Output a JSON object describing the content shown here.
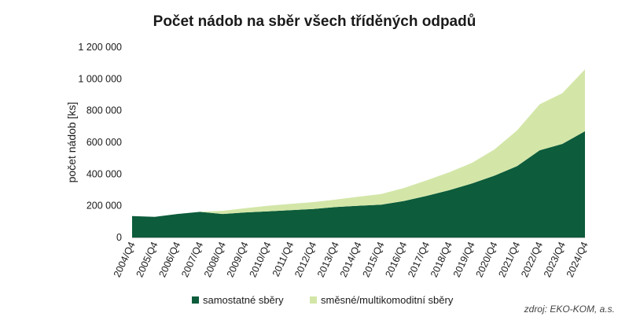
{
  "chart_data": {
    "type": "area",
    "title": "Počet nádob na sběr všech tříděných odpadů",
    "ylabel": "počet nádob [ks]",
    "xlabel": "",
    "ylim": [
      0,
      1200000
    ],
    "yticks": [
      0,
      200000,
      400000,
      600000,
      800000,
      1000000,
      1200000
    ],
    "ytick_labels": [
      "0",
      "200 000",
      "400 000",
      "600 000",
      "800 000",
      "1 000 000",
      "1 200 000"
    ],
    "stacked": true,
    "grid": false,
    "legend_position": "bottom",
    "categories": [
      "2004/Q4",
      "2005/Q4",
      "2006/Q4",
      "2007/Q4",
      "2008/Q4",
      "2009/Q4",
      "2010/Q4",
      "2011/Q4",
      "2012/Q4",
      "2013/Q4",
      "2014/Q4",
      "2015/Q4",
      "2016/Q4",
      "2017/Q4",
      "2018/Q4",
      "2019/Q4",
      "2020/Q4",
      "2021/Q4",
      "2022/Q4",
      "2023/Q4",
      "2024/Q4"
    ],
    "series": [
      {
        "name": "samostatné sběry",
        "color": "#0d5c3c",
        "values": [
          135000,
          130000,
          148000,
          162000,
          148000,
          158000,
          165000,
          172000,
          180000,
          192000,
          200000,
          207000,
          230000,
          262000,
          298000,
          340000,
          390000,
          450000,
          550000,
          590000,
          670000
        ]
      },
      {
        "name": "směsné/multikomoditní sběry",
        "color": "#d3e6a8",
        "values": [
          0,
          0,
          0,
          0,
          20000,
          27000,
          35000,
          40000,
          43000,
          47000,
          57000,
          67000,
          82000,
          98000,
          113000,
          130000,
          165000,
          225000,
          290000,
          320000,
          390000
        ]
      }
    ],
    "source": "zdroj: EKO-KOM, a.s."
  }
}
